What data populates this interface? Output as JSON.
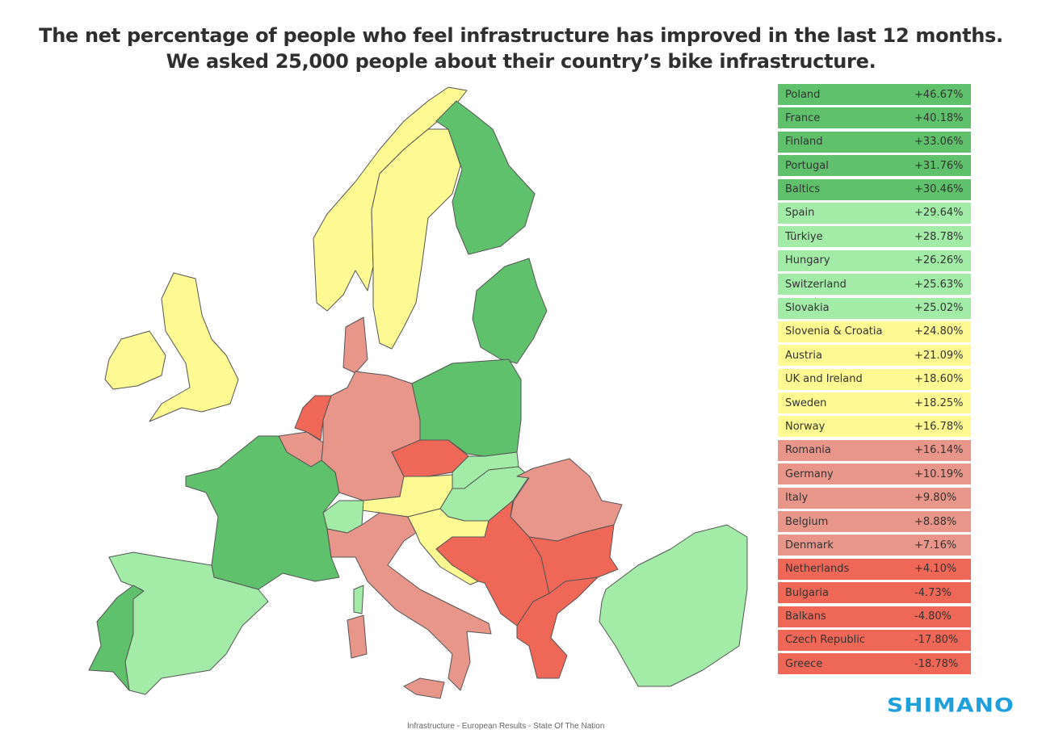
{
  "title_line1": "The net percentage of people who feel infrastructure has improved in the last 12 months.",
  "title_line2": "We asked 25,000 people about their country’s bike infrastructure.",
  "colors": {
    "dark_green": "#5fc16b",
    "light_green": "#a2eca8",
    "yellow": "#fdfa93",
    "pink": "#e8968a",
    "red": "#ef6756"
  },
  "rows": [
    {
      "name": "Poland",
      "value": "+46.67%",
      "color": "dark_green"
    },
    {
      "name": "France",
      "value": "+40.18%",
      "color": "dark_green"
    },
    {
      "name": "Finland",
      "value": "+33.06%",
      "color": "dark_green"
    },
    {
      "name": "Portugal",
      "value": "+31.76%",
      "color": "dark_green"
    },
    {
      "name": "Baltics",
      "value": "+30.46%",
      "color": "dark_green"
    },
    {
      "name": "Spain",
      "value": "+29.64%",
      "color": "light_green"
    },
    {
      "name": "Türkiye",
      "value": "+28.78%",
      "color": "light_green"
    },
    {
      "name": "Hungary",
      "value": "+26.26%",
      "color": "light_green"
    },
    {
      "name": "Switzerland",
      "value": "+25.63%",
      "color": "light_green"
    },
    {
      "name": "Slovakia",
      "value": "+25.02%",
      "color": "light_green"
    },
    {
      "name": "Slovenia & Croatia",
      "value": "+24.80%",
      "color": "yellow"
    },
    {
      "name": "Austria",
      "value": "+21.09%",
      "color": "yellow"
    },
    {
      "name": "UK and Ireland",
      "value": "+18.60%",
      "color": "yellow"
    },
    {
      "name": "Sweden",
      "value": "+18.25%",
      "color": "yellow"
    },
    {
      "name": "Norway",
      "value": "+16.78%",
      "color": "yellow"
    },
    {
      "name": "Romania",
      "value": "+16.14%",
      "color": "pink"
    },
    {
      "name": "Germany",
      "value": "+10.19%",
      "color": "pink"
    },
    {
      "name": "Italy",
      "value": "+9.80%",
      "color": "pink"
    },
    {
      "name": "Belgium",
      "value": "+8.88%",
      "color": "pink"
    },
    {
      "name": "Denmark",
      "value": "+7.16%",
      "color": "pink"
    },
    {
      "name": "Netherlands",
      "value": "+4.10%",
      "color": "red"
    },
    {
      "name": "Bulgaria",
      "value": "-4.73%",
      "color": "red"
    },
    {
      "name": "Balkans",
      "value": "-4.80%",
      "color": "red"
    },
    {
      "name": "Czech Republic",
      "value": "-17.80%",
      "color": "red"
    },
    {
      "name": "Greece",
      "value": "-18.78%",
      "color": "red"
    }
  ],
  "footer": "Infrastructure - European Results - State Of The Nation",
  "logo": "SHIMANO"
}
